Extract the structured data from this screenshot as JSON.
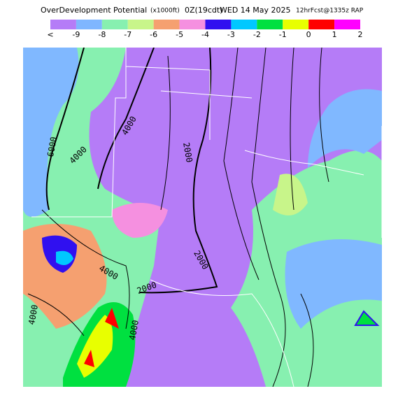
{
  "header": {
    "title": "OverDevelopment Potential",
    "units": "(x1000ft)",
    "valid_time": "0Z(19cdt)",
    "date": "WED 14 May 2025",
    "forecast": "12hrFcst@1335z RAP"
  },
  "legend": {
    "labels": [
      "<",
      "-9",
      "-8",
      "-7",
      "-6",
      "-5",
      "-4",
      "-3",
      "-2",
      "-1",
      "0",
      "1",
      "2"
    ],
    "colors": [
      "#b57cf7",
      "#7fb6ff",
      "#87f0b0",
      "#c8f58a",
      "#f5a070",
      "#f590e0",
      "#3010f0",
      "#00c8ff",
      "#00e040",
      "#e8ff00",
      "#ff0000",
      "#ff00ff"
    ]
  },
  "contour_labels": [
    "6000",
    "4000",
    "4000",
    "2000",
    "2000",
    "4000",
    "2000",
    "4000",
    "4000"
  ]
}
